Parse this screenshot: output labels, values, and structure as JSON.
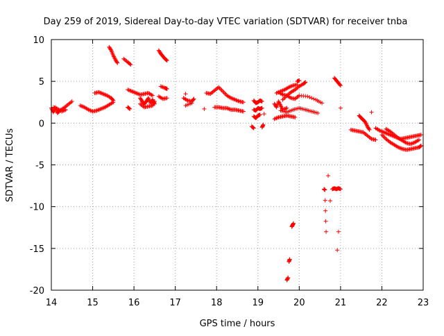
{
  "chart_data": {
    "type": "scatter",
    "title": "Day 259 of 2019, Sidereal Day-to-day VTEC variation (SDTVAR) for receiver tnba",
    "xlabel": "GPS time / hours",
    "ylabel": "SDTVAR / TECUs",
    "xlim": [
      14,
      23
    ],
    "ylim": [
      -20,
      10
    ],
    "xticks": [
      14,
      15,
      16,
      17,
      18,
      19,
      20,
      21,
      22,
      23
    ],
    "yticks": [
      -20,
      -15,
      -10,
      -5,
      0,
      5,
      10
    ],
    "grid": true,
    "marker": "+",
    "color": "#ff0000",
    "segments": [
      [
        [
          14.0,
          1.8
        ],
        [
          14.05,
          1.3
        ],
        [
          14.1,
          1.9
        ],
        [
          14.15,
          1.2
        ],
        [
          14.2,
          1.5
        ],
        [
          14.3,
          1.8
        ],
        [
          14.4,
          2.2
        ],
        [
          14.5,
          2.6
        ]
      ],
      [
        [
          14.05,
          1.9
        ],
        [
          14.15,
          1.7
        ],
        [
          14.25,
          1.4
        ],
        [
          14.35,
          1.6
        ]
      ],
      [
        [
          14.7,
          2.1
        ],
        [
          14.8,
          1.9
        ],
        [
          14.9,
          1.6
        ],
        [
          15.0,
          1.4
        ],
        [
          15.1,
          1.5
        ],
        [
          15.2,
          1.7
        ],
        [
          15.3,
          1.9
        ],
        [
          15.4,
          2.2
        ],
        [
          15.5,
          2.5
        ]
      ],
      [
        [
          15.05,
          3.6
        ],
        [
          15.15,
          3.7
        ],
        [
          15.25,
          3.5
        ],
        [
          15.35,
          3.3
        ],
        [
          15.45,
          3.0
        ],
        [
          15.5,
          2.7
        ]
      ],
      [
        [
          15.4,
          9.1
        ],
        [
          15.45,
          8.7
        ],
        [
          15.5,
          8.1
        ],
        [
          15.55,
          7.6
        ],
        [
          15.6,
          7.2
        ]
      ],
      [
        [
          15.75,
          7.7
        ],
        [
          15.85,
          7.3
        ],
        [
          15.92,
          7.0
        ]
      ],
      [
        [
          15.85,
          1.9
        ],
        [
          15.9,
          1.7
        ]
      ],
      [
        [
          15.85,
          4.0
        ],
        [
          15.95,
          3.8
        ],
        [
          16.05,
          3.6
        ],
        [
          16.15,
          3.4
        ],
        [
          16.25,
          3.5
        ],
        [
          16.35,
          3.6
        ],
        [
          16.45,
          3.3
        ]
      ],
      [
        [
          16.15,
          3.0
        ],
        [
          16.2,
          2.6
        ],
        [
          16.25,
          2.3
        ],
        [
          16.3,
          2.6
        ],
        [
          16.35,
          3.0
        ],
        [
          16.4,
          2.4
        ],
        [
          16.45,
          2.8
        ],
        [
          16.5,
          2.3
        ]
      ],
      [
        [
          16.15,
          2.3
        ],
        [
          16.25,
          1.9
        ],
        [
          16.35,
          2.0
        ],
        [
          16.45,
          2.1
        ],
        [
          16.5,
          2.6
        ]
      ],
      [
        [
          16.6,
          8.7
        ],
        [
          16.65,
          8.3
        ],
        [
          16.7,
          8.0
        ],
        [
          16.75,
          7.7
        ],
        [
          16.8,
          7.5
        ]
      ],
      [
        [
          16.65,
          4.4
        ],
        [
          16.75,
          4.2
        ],
        [
          16.8,
          4.1
        ]
      ],
      [
        [
          16.6,
          3.2
        ],
        [
          16.7,
          2.9
        ],
        [
          16.8,
          3.0
        ]
      ],
      [
        [
          17.2,
          3.0
        ],
        [
          17.3,
          2.7
        ],
        [
          17.4,
          2.6
        ],
        [
          17.45,
          2.9
        ]
      ],
      [
        [
          17.25,
          3.5
        ]
      ],
      [
        [
          17.25,
          2.1
        ],
        [
          17.4,
          2.4
        ]
      ],
      [
        [
          17.7,
          1.7
        ]
      ],
      [
        [
          17.75,
          3.6
        ],
        [
          17.85,
          3.5
        ],
        [
          17.95,
          3.9
        ],
        [
          18.05,
          4.3
        ],
        [
          18.15,
          3.8
        ],
        [
          18.25,
          3.3
        ],
        [
          18.35,
          3.0
        ],
        [
          18.45,
          2.8
        ],
        [
          18.55,
          2.6
        ],
        [
          18.65,
          2.5
        ]
      ],
      [
        [
          17.95,
          1.9
        ],
        [
          18.05,
          1.9
        ],
        [
          18.15,
          1.8
        ],
        [
          18.25,
          1.8
        ],
        [
          18.35,
          1.6
        ],
        [
          18.45,
          1.6
        ],
        [
          18.55,
          1.5
        ],
        [
          18.65,
          1.4
        ]
      ],
      [
        [
          18.9,
          2.7
        ],
        [
          18.95,
          2.4
        ],
        [
          19.0,
          2.5
        ],
        [
          19.05,
          2.7
        ],
        [
          19.1,
          2.6
        ]
      ],
      [
        [
          18.9,
          1.6
        ],
        [
          18.95,
          1.5
        ],
        [
          19.0,
          1.8
        ],
        [
          19.05,
          1.7
        ],
        [
          19.1,
          1.8
        ]
      ],
      [
        [
          18.9,
          0.8
        ],
        [
          18.95,
          0.6
        ],
        [
          19.0,
          0.9
        ],
        [
          19.05,
          1.0
        ]
      ],
      [
        [
          18.85,
          -0.4
        ],
        [
          18.9,
          -0.6
        ]
      ],
      [
        [
          19.1,
          -0.5
        ],
        [
          19.13,
          -0.2
        ]
      ],
      [
        [
          19.15,
          1.1
        ]
      ],
      [
        [
          19.4,
          2.3
        ],
        [
          19.45,
          1.9
        ],
        [
          19.5,
          2.6
        ],
        [
          19.55,
          2.1
        ],
        [
          19.6,
          1.6
        ],
        [
          19.7,
          1.8
        ]
      ],
      [
        [
          19.45,
          3.6
        ],
        [
          19.55,
          3.8
        ],
        [
          19.65,
          4.0
        ],
        [
          19.75,
          4.3
        ],
        [
          19.85,
          4.5
        ],
        [
          19.95,
          4.6
        ]
      ],
      [
        [
          19.5,
          3.7
        ],
        [
          19.6,
          3.4
        ],
        [
          19.7,
          3.3
        ],
        [
          19.8,
          3.0
        ],
        [
          19.9,
          2.9
        ],
        [
          20.0,
          3.3
        ],
        [
          20.2,
          3.2
        ],
        [
          20.4,
          2.8
        ],
        [
          20.55,
          2.4
        ]
      ],
      [
        [
          19.55,
          1.5
        ],
        [
          19.7,
          1.3
        ],
        [
          19.85,
          1.6
        ],
        [
          20.0,
          1.8
        ],
        [
          20.15,
          1.6
        ],
        [
          20.3,
          1.4
        ],
        [
          20.45,
          1.2
        ]
      ],
      [
        [
          19.6,
          2.8
        ],
        [
          19.7,
          3.3
        ],
        [
          19.8,
          3.7
        ],
        [
          19.9,
          4.0
        ],
        [
          20.0,
          4.4
        ],
        [
          20.1,
          4.7
        ],
        [
          20.15,
          4.9
        ]
      ],
      [
        [
          19.4,
          0.5
        ],
        [
          19.5,
          0.7
        ],
        [
          19.6,
          0.8
        ],
        [
          19.7,
          0.9
        ],
        [
          19.8,
          0.8
        ],
        [
          19.9,
          0.7
        ]
      ],
      [
        [
          19.95,
          5.0
        ],
        [
          20.0,
          5.1
        ]
      ],
      [
        [
          19.7,
          -18.8
        ],
        [
          19.73,
          -18.5
        ]
      ],
      [
        [
          19.75,
          -16.6
        ],
        [
          19.77,
          -16.3
        ]
      ],
      [
        [
          19.82,
          -12.4
        ],
        [
          19.84,
          -12.2
        ],
        [
          19.86,
          -12.0
        ]
      ],
      [
        [
          20.6,
          -7.9
        ],
        [
          20.62,
          -8.0
        ],
        [
          20.65,
          -13.0
        ]
      ],
      [
        [
          20.7,
          -6.3
        ]
      ],
      [
        [
          20.75,
          -9.3
        ]
      ],
      [
        [
          20.8,
          -7.9
        ],
        [
          20.85,
          -7.8
        ],
        [
          20.9,
          -7.9
        ],
        [
          20.95,
          -7.8
        ],
        [
          21.0,
          -7.9
        ]
      ],
      [
        [
          20.95,
          -13.0
        ]
      ],
      [
        [
          20.92,
          -15.2
        ]
      ],
      [
        [
          20.85,
          5.4
        ],
        [
          20.9,
          5.1
        ],
        [
          20.95,
          4.8
        ],
        [
          21.0,
          4.5
        ]
      ],
      [
        [
          21.0,
          1.8
        ]
      ],
      [
        [
          21.25,
          -0.8
        ],
        [
          21.35,
          -0.9
        ],
        [
          21.45,
          -1.0
        ],
        [
          21.55,
          -1.1
        ],
        [
          21.65,
          -1.5
        ],
        [
          21.75,
          -1.9
        ],
        [
          21.85,
          -2.0
        ]
      ],
      [
        [
          21.45,
          0.9
        ],
        [
          21.5,
          0.6
        ],
        [
          21.55,
          0.4
        ],
        [
          21.6,
          0.1
        ],
        [
          21.65,
          -0.4
        ],
        [
          21.7,
          -0.8
        ]
      ],
      [
        [
          21.75,
          1.3
        ]
      ],
      [
        [
          21.85,
          -0.6
        ],
        [
          21.95,
          -0.9
        ],
        [
          22.05,
          -1.1
        ],
        [
          22.15,
          -1.3
        ],
        [
          22.25,
          -1.5
        ],
        [
          22.35,
          -1.7
        ],
        [
          22.45,
          -1.9
        ],
        [
          22.55,
          -1.8
        ],
        [
          22.65,
          -1.7
        ],
        [
          22.75,
          -1.6
        ],
        [
          22.85,
          -1.5
        ],
        [
          22.95,
          -1.4
        ]
      ],
      [
        [
          22.0,
          -1.4
        ],
        [
          22.1,
          -1.9
        ],
        [
          22.2,
          -2.3
        ],
        [
          22.3,
          -2.6
        ],
        [
          22.4,
          -2.9
        ],
        [
          22.5,
          -3.1
        ],
        [
          22.6,
          -3.2
        ],
        [
          22.7,
          -3.1
        ],
        [
          22.8,
          -3.0
        ],
        [
          22.9,
          -2.9
        ],
        [
          22.95,
          -2.7
        ]
      ],
      [
        [
          22.1,
          -0.7
        ],
        [
          22.2,
          -1.0
        ],
        [
          22.3,
          -1.4
        ],
        [
          22.4,
          -1.8
        ],
        [
          22.5,
          -2.1
        ],
        [
          22.6,
          -2.4
        ],
        [
          22.7,
          -2.5
        ],
        [
          22.8,
          -2.3
        ],
        [
          22.9,
          -2.0
        ]
      ]
    ]
  }
}
